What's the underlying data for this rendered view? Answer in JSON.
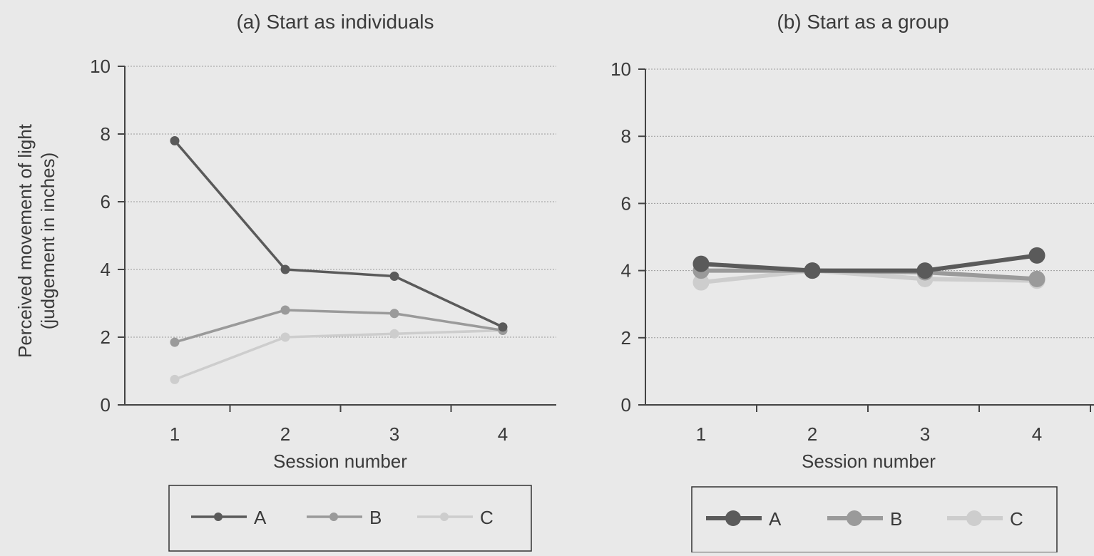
{
  "chart_data": [
    {
      "type": "line",
      "title": "(a) Start as individuals",
      "xlabel": "Session number",
      "ylabel": "Perceived movement of light",
      "ylabel2": "(judgement in inches)",
      "x": [
        1,
        2,
        3,
        4
      ],
      "xticks": [
        "1",
        "2",
        "3",
        "4"
      ],
      "yticks": [
        "0",
        "2",
        "4",
        "6",
        "8",
        "10"
      ],
      "ylim": [
        0,
        10
      ],
      "grid": true,
      "series": [
        {
          "name": "A",
          "values": [
            7.8,
            4.0,
            3.8,
            2.3
          ],
          "color": "#5a5a5a"
        },
        {
          "name": "B",
          "values": [
            1.85,
            2.8,
            2.7,
            2.2
          ],
          "color": "#9a9a9a"
        },
        {
          "name": "C",
          "values": [
            0.75,
            2.0,
            2.1,
            2.2
          ],
          "color": "#cdcdcd"
        }
      ],
      "legend": "below"
    },
    {
      "type": "line",
      "title": "(b) Start as a group",
      "xlabel": "Session number",
      "x": [
        1,
        2,
        3,
        4
      ],
      "xticks": [
        "1",
        "2",
        "3",
        "4"
      ],
      "yticks": [
        "0",
        "2",
        "4",
        "6",
        "8",
        "10"
      ],
      "ylim": [
        0,
        10
      ],
      "grid": true,
      "series": [
        {
          "name": "A",
          "values": [
            4.2,
            4.0,
            4.0,
            4.45
          ],
          "color": "#5a5a5a"
        },
        {
          "name": "B",
          "values": [
            4.0,
            4.0,
            3.95,
            3.75
          ],
          "color": "#9a9a9a"
        },
        {
          "name": "C",
          "values": [
            3.65,
            4.0,
            3.75,
            3.7
          ],
          "color": "#cdcdcd"
        }
      ],
      "legend": "below"
    }
  ]
}
